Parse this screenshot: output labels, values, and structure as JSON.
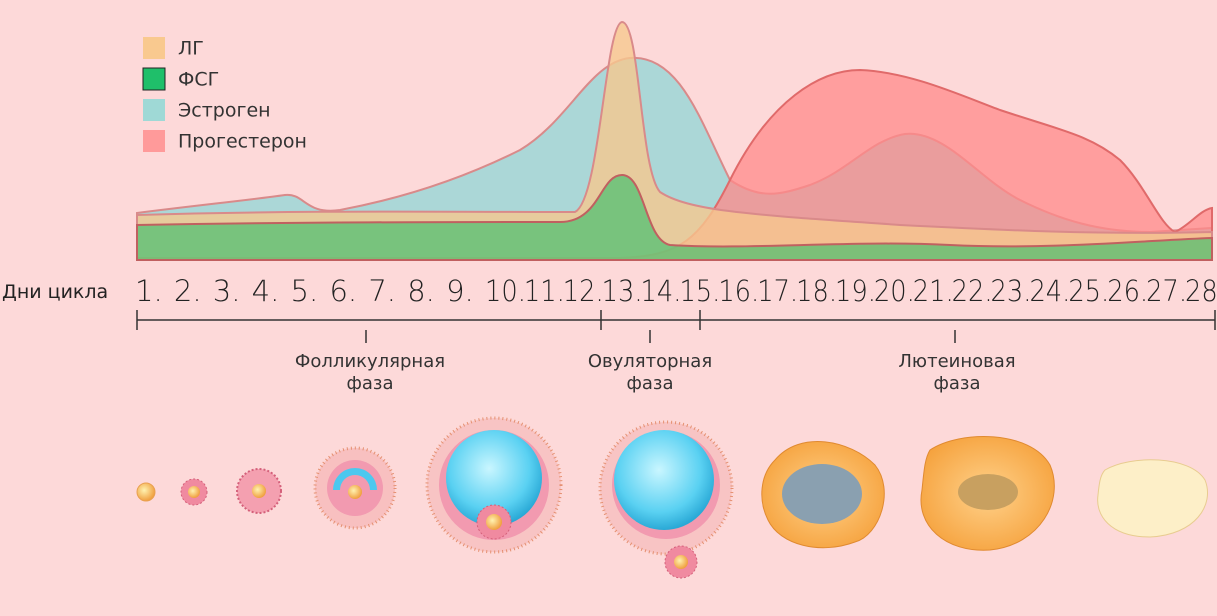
{
  "legend": [
    "ЛГ",
    "ФСГ",
    "Эстроген",
    "Прогестерон"
  ],
  "days_label": "Дни цикла",
  "days": [
    "1.",
    "2.",
    "3.",
    "4.",
    "5.",
    "6.",
    "7.",
    "8.",
    "9.",
    "10.",
    "11.",
    "12.",
    "13.",
    "14.",
    "15.",
    "16.",
    "17.",
    "18.",
    "19.",
    "20.",
    "21.",
    "22.",
    "23.",
    "24.",
    "25.",
    "26.",
    "27.",
    "28."
  ],
  "phases": [
    [
      "Фолликулярная",
      "фаза"
    ],
    [
      "Овуляторная",
      "фаза"
    ],
    [
      "Лютеиновая",
      "фаза"
    ]
  ]
}
